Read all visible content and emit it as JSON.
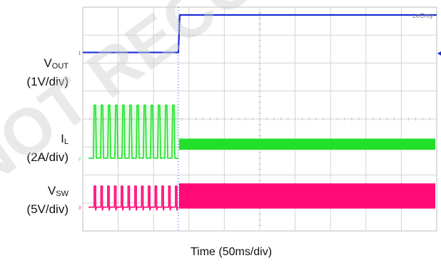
{
  "chart_data": {
    "type": "line",
    "title": "",
    "xlabel": "Time (50ms/div)",
    "ylabel": "",
    "brand": "LeCroy",
    "divisions": {
      "x": 10,
      "y": 8
    },
    "x": {
      "unit": "div",
      "range": [
        0,
        10
      ],
      "step_at": 2.7
    },
    "series": [
      {
        "name": "VOUT",
        "label_main": "V",
        "label_sub": "OUT",
        "scale": "(1V/div)",
        "color": "#1a2fd6",
        "low_level_div": 6.38,
        "high_level_div": 7.72,
        "step_at_div": 2.7
      },
      {
        "name": "IL",
        "label_main": "I",
        "label_sub": "L",
        "scale": "(2A/div)",
        "color": "#22e02a",
        "baseline_div": 2.6,
        "pulse_top_div": 4.5,
        "pulses_before_step": 12,
        "continuous_level_div": 3.3,
        "continuous_low_div": 2.9
      },
      {
        "name": "VSW",
        "label_main": "V",
        "label_sub": "SW",
        "scale": "(5V/div)",
        "color": "#ff0a78",
        "baseline_div": 0.85,
        "pulse_top_div": 1.6,
        "pulses_before_step": 13,
        "switching_top_div": 1.7
      }
    ],
    "grid": true
  },
  "watermark": "NOT RECOMMENDED FOR NEW DESIGNS"
}
